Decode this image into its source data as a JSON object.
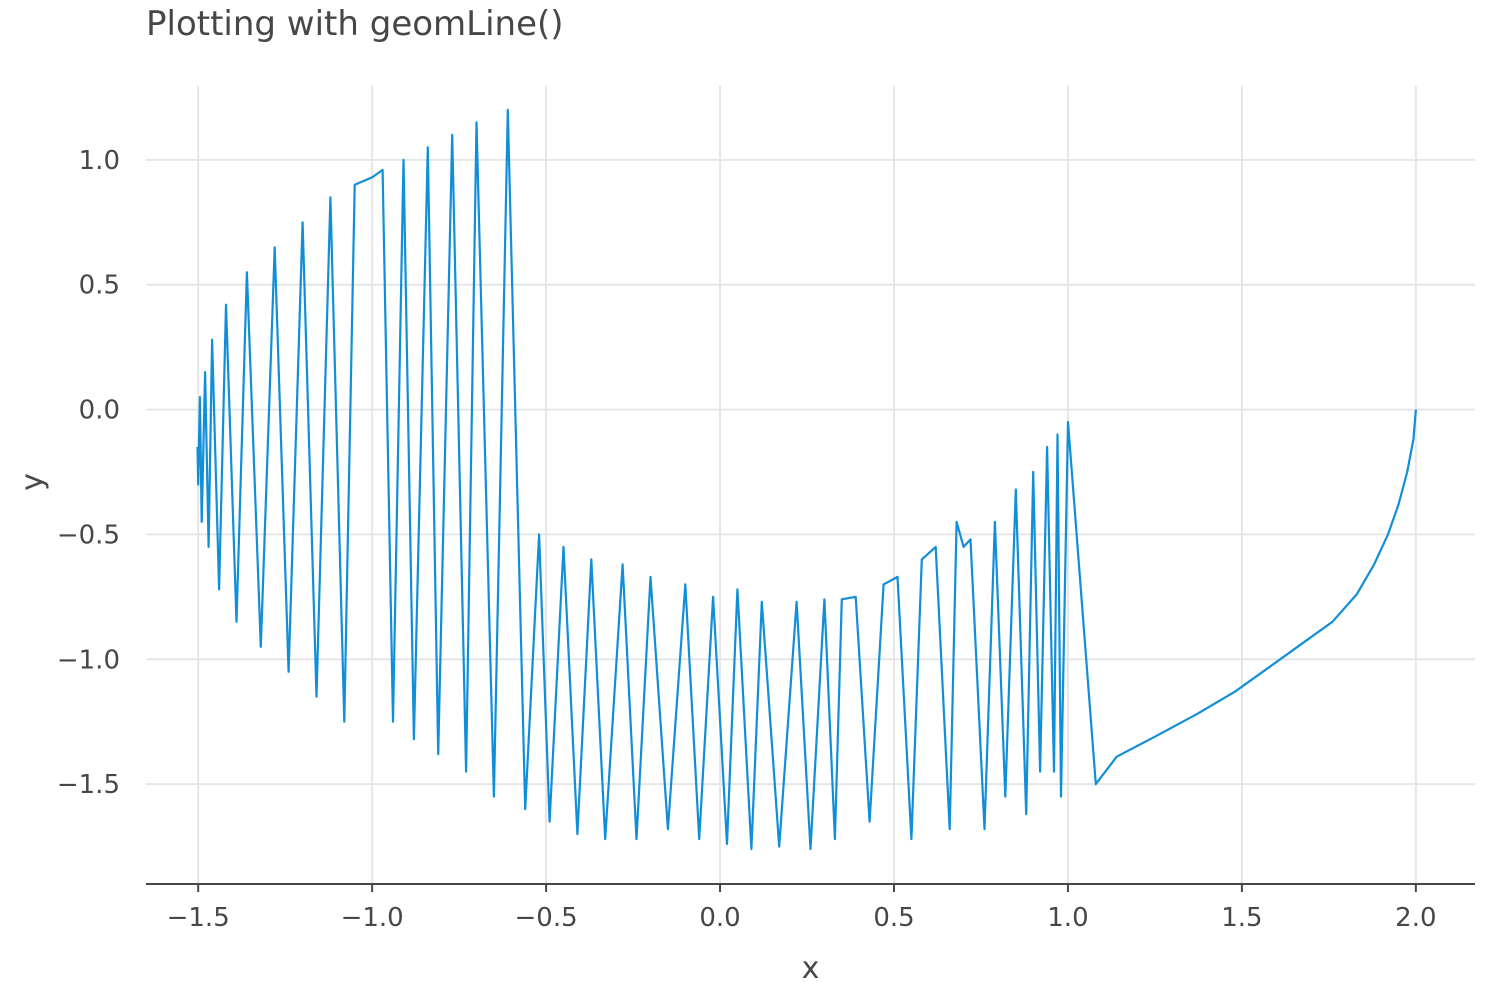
{
  "chart_data": {
    "type": "line",
    "title": "Plotting with geomLine()",
    "xlabel": "x",
    "ylabel": "y",
    "xlim": [
      -1.65,
      2.17
    ],
    "ylim": [
      -1.9,
      1.4
    ],
    "x_ticks": [
      -1.5,
      -1.0,
      -0.5,
      0.0,
      0.5,
      1.0,
      1.5,
      2.0
    ],
    "x_tick_labels": [
      "−1.5",
      "−1.0",
      "−0.5",
      "0.0",
      "0.5",
      "1.0",
      "1.5",
      "2.0"
    ],
    "y_ticks": [
      -1.5,
      -1.0,
      -0.5,
      0.0,
      0.5,
      1.0
    ],
    "y_tick_labels": [
      "−1.5",
      "−1.0",
      "−0.5",
      "0.0",
      "0.5",
      "1.0"
    ],
    "grid": true,
    "line_color": "#118ed8",
    "series": [
      {
        "x": [
          2.0,
          1.993,
          1.975,
          1.95,
          1.92,
          1.88,
          1.83,
          1.76,
          1.68,
          1.58,
          1.48,
          1.37,
          1.25,
          1.14,
          1.08,
          1.0,
          0.98,
          0.97,
          0.96,
          0.94,
          0.92,
          0.9,
          0.88,
          0.85,
          0.82,
          0.79,
          0.76,
          0.72,
          0.7,
          0.68,
          0.66,
          0.62,
          0.58,
          0.55,
          0.51,
          0.47,
          0.43,
          0.39,
          0.35,
          0.33,
          0.3,
          0.26,
          0.22,
          0.17,
          0.12,
          0.09,
          0.05,
          0.02,
          -0.02,
          -0.06,
          -0.1,
          -0.15,
          -0.2,
          -0.24,
          -0.28,
          -0.33,
          -0.37,
          -0.41,
          -0.45,
          -0.49,
          -0.52,
          -0.56,
          -0.61,
          -0.65,
          -0.7,
          -0.73,
          -0.77,
          -0.81,
          -0.84,
          -0.88,
          -0.91,
          -0.94,
          -0.97,
          -1.0,
          -1.05,
          -1.08,
          -1.12,
          -1.16,
          -1.2,
          -1.24,
          -1.28,
          -1.32,
          -1.36,
          -1.39,
          -1.42,
          -1.44,
          -1.46,
          -1.47,
          -1.48,
          -1.49,
          -1.495,
          -1.5,
          -1.502
        ],
        "y": [
          0.0,
          -0.12,
          -0.25,
          -0.38,
          -0.5,
          -0.62,
          -0.74,
          -0.85,
          -0.93,
          -1.03,
          -1.13,
          -1.22,
          -1.31,
          -1.39,
          -1.5,
          -0.05,
          -1.55,
          -0.1,
          -1.45,
          -0.15,
          -1.45,
          -0.25,
          -1.62,
          -0.32,
          -1.55,
          -0.45,
          -1.68,
          -0.52,
          -0.55,
          -0.45,
          -1.68,
          -0.55,
          -0.6,
          -1.72,
          -0.67,
          -0.7,
          -1.65,
          -0.75,
          -0.76,
          -1.72,
          -0.76,
          -1.76,
          -0.77,
          -1.75,
          -0.77,
          -1.76,
          -0.72,
          -1.74,
          -0.75,
          -1.72,
          -0.7,
          -1.68,
          -0.67,
          -1.72,
          -0.62,
          -1.72,
          -0.6,
          -1.7,
          -0.55,
          -1.65,
          -0.5,
          -1.6,
          1.2,
          -1.55,
          1.15,
          -1.45,
          1.1,
          -1.38,
          1.05,
          -1.32,
          1.0,
          -1.25,
          0.96,
          0.93,
          0.9,
          -1.25,
          0.85,
          -1.15,
          0.75,
          -1.05,
          0.65,
          -0.95,
          0.55,
          -0.85,
          0.42,
          -0.72,
          0.28,
          -0.55,
          0.15,
          -0.45,
          0.05,
          -0.3,
          -0.15
        ]
      }
    ]
  }
}
